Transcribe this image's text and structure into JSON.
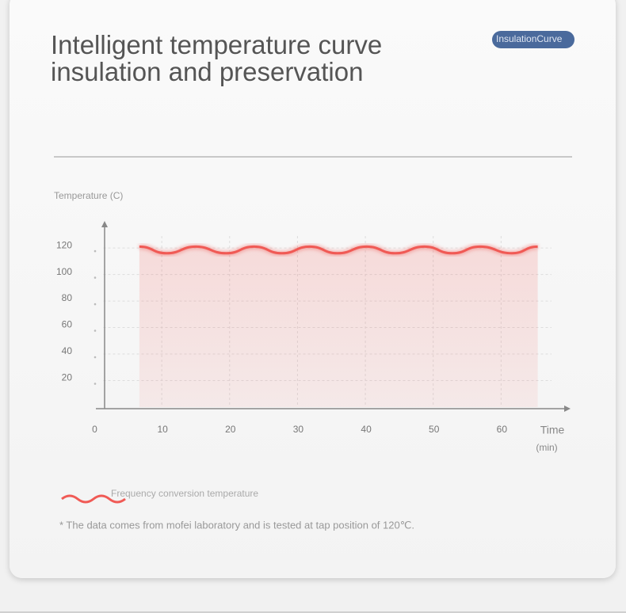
{
  "chart_data": {
    "type": "area-line",
    "title": "Intelligent temperature curve insulation and preservation",
    "subtitle": "InsulationCurve",
    "y_label": "Temperature (C)",
    "x_label": "Time",
    "x_unit": "(min)",
    "note": "* The data comes from mofei laboratory and is tested at tap position of 120℃.",
    "x": [
      6.7,
      10.7,
      15.0,
      19.5,
      23.6,
      27.7,
      31.8,
      35.9,
      40.2,
      44.4,
      48.7,
      52.8,
      56.9,
      61.6,
      65.4
    ],
    "series": [
      {
        "name": "Frequency conversion temperature",
        "color": "#f05a55",
        "values": [
          121,
          116,
          121,
          116,
          121,
          116,
          121,
          116,
          121,
          116,
          121,
          116,
          121,
          116,
          121
        ]
      }
    ],
    "xlim": [
      0,
      70
    ],
    "ylim": [
      0,
      135
    ],
    "xticks": [
      0,
      10,
      20,
      30,
      40,
      50,
      60
    ],
    "yticks": [
      20,
      40,
      60,
      80,
      100,
      120
    ],
    "grid": true
  }
}
